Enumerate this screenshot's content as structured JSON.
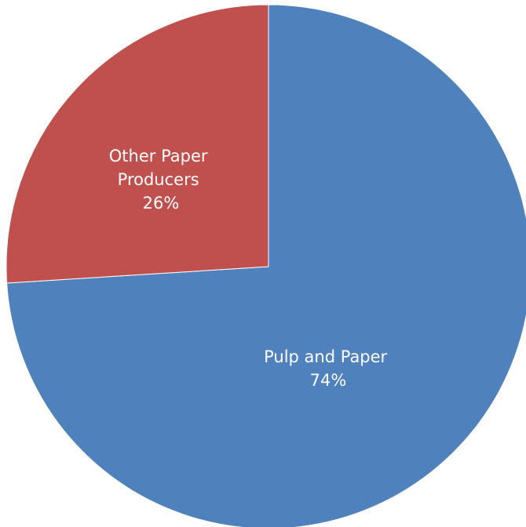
{
  "chart_data": {
    "type": "pie",
    "title": "",
    "start_angle_deg": 0,
    "direction": "clockwise",
    "slices": [
      {
        "name": "Pulp and Paper",
        "value": 74,
        "value_label": "74%",
        "color": "#4f81bd"
      },
      {
        "name": "Other Paper Producers",
        "value": 26,
        "value_label": "26%",
        "color": "#c0504d"
      }
    ],
    "legend": "none",
    "data_labels": "inside"
  }
}
